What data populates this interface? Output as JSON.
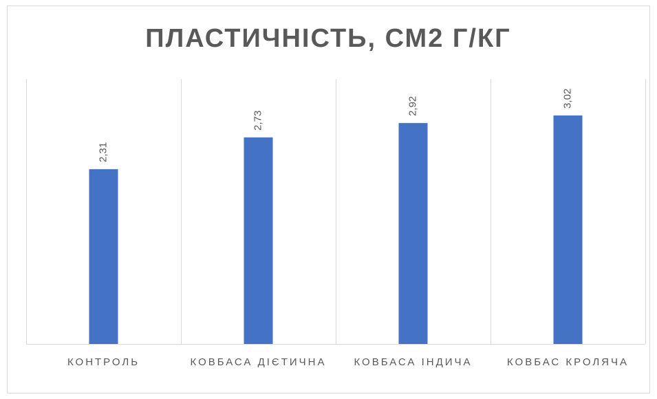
{
  "chart_data": {
    "type": "bar",
    "title": "ПЛАСТИЧНІСТЬ, СМ2 Г/КГ",
    "categories": [
      "КОНТРОЛЬ",
      "КОВБАСА ДІЄТИЧНА",
      "КОВБАСА ІНДИЧА",
      "КОВБАС КРОЛЯЧА"
    ],
    "values": [
      2.31,
      2.73,
      2.92,
      3.02
    ],
    "value_labels": [
      "2,31",
      "2,73",
      "2,92",
      "3,02"
    ],
    "color": "#4472c4",
    "ylim": [
      0,
      3.5
    ]
  }
}
